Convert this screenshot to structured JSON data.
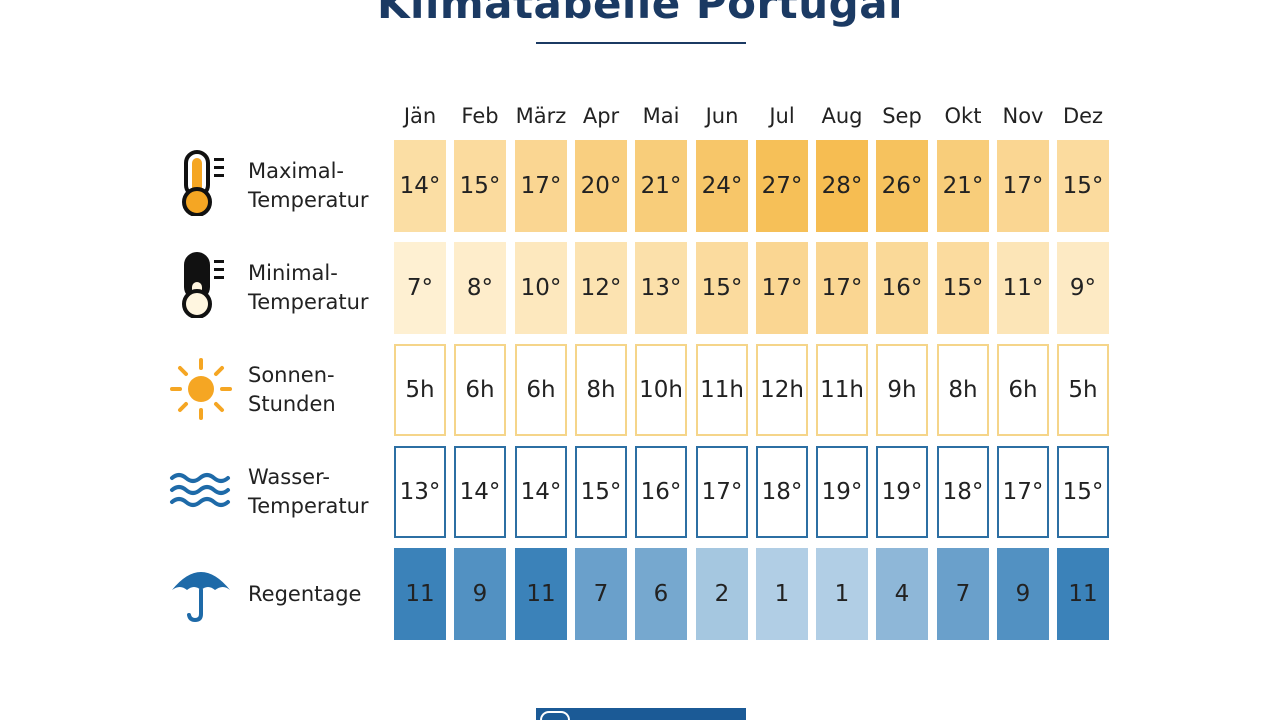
{
  "title": "Klimatabelle Portugal",
  "chart_data": {
    "type": "table",
    "title": "Klimatabelle Portugal",
    "months": [
      "Jän",
      "Feb",
      "März",
      "Apr",
      "Mai",
      "Jun",
      "Jul",
      "Aug",
      "Sep",
      "Okt",
      "Nov",
      "Dez"
    ],
    "rows": [
      {
        "key": "max",
        "label_lines": [
          "Maximal-",
          "Temperatur"
        ],
        "icon": "thermometer-high-icon",
        "unit": "°",
        "values": [
          14,
          15,
          17,
          20,
          21,
          24,
          27,
          28,
          26,
          21,
          17,
          15
        ],
        "color": "#f5b947"
      },
      {
        "key": "min",
        "label_lines": [
          "Minimal-",
          "Temperatur"
        ],
        "icon": "thermometer-low-icon",
        "unit": "°",
        "values": [
          7,
          8,
          10,
          12,
          13,
          15,
          17,
          17,
          16,
          15,
          11,
          9
        ],
        "color": "#f5b947"
      },
      {
        "key": "sun",
        "label_lines": [
          "Sonnen-",
          "Stunden"
        ],
        "icon": "sun-icon",
        "unit": "h",
        "values": [
          5,
          6,
          6,
          8,
          10,
          11,
          12,
          11,
          9,
          8,
          6,
          5
        ],
        "color": "#f5d58a"
      },
      {
        "key": "water",
        "label_lines": [
          "Wasser-",
          "Temperatur"
        ],
        "icon": "waves-icon",
        "unit": "°",
        "values": [
          13,
          14,
          14,
          15,
          16,
          17,
          18,
          19,
          19,
          18,
          17,
          15
        ],
        "color": "#2c6fa3"
      },
      {
        "key": "rain",
        "label_lines": [
          "Regentage"
        ],
        "icon": "umbrella-icon",
        "unit": "",
        "values": [
          11,
          9,
          11,
          7,
          6,
          2,
          1,
          1,
          4,
          7,
          9,
          11
        ],
        "color": "#2f7ab5"
      }
    ]
  },
  "colors": {
    "title": "#1b3a63",
    "warm": "#f5b947",
    "sun_outline": "#f5d58a",
    "water_outline": "#2c6fa3",
    "rain": "#2f7ab5",
    "icon_orange": "#f5a623",
    "icon_blue": "#1e6aa8"
  }
}
